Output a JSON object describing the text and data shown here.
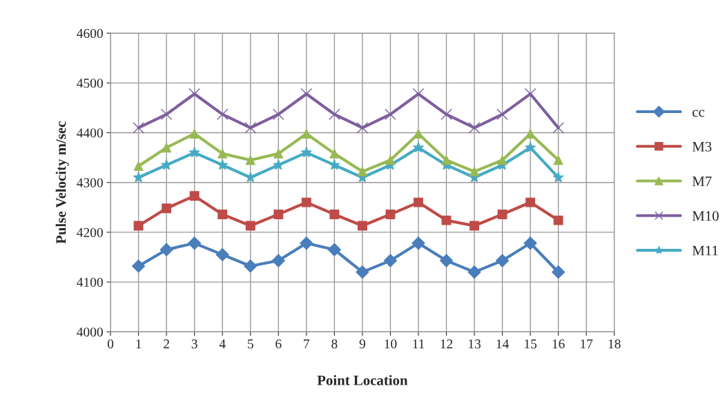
{
  "chart_data": {
    "type": "line",
    "xlabel": "Point Location",
    "ylabel": "Pulse Velocity m/sec",
    "x": [
      1,
      2,
      3,
      4,
      5,
      6,
      7,
      8,
      9,
      10,
      11,
      12,
      13,
      14,
      15,
      16
    ],
    "xlim": [
      0,
      18
    ],
    "xticks": [
      0,
      1,
      2,
      3,
      4,
      5,
      6,
      7,
      8,
      9,
      10,
      11,
      12,
      13,
      14,
      15,
      16,
      17,
      18
    ],
    "ylim": [
      4000,
      4600
    ],
    "yticks": [
      4000,
      4100,
      4200,
      4300,
      4400,
      4500,
      4600
    ],
    "grid": true,
    "legend": "right",
    "line_style": "solid",
    "series": [
      {
        "name": "cc",
        "color": "#4a7ebb",
        "marker": "diamond",
        "values": [
          4132,
          4165,
          4178,
          4155,
          4132,
          4143,
          4178,
          4165,
          4120,
          4143,
          4178,
          4143,
          4120,
          4143,
          4178,
          4120
        ]
      },
      {
        "name": "M3",
        "color": "#be4b48",
        "marker": "square",
        "values": [
          4213,
          4248,
          4273,
          4236,
          4213,
          4236,
          4260,
          4236,
          4213,
          4236,
          4260,
          4224,
          4213,
          4236,
          4260,
          4224
        ]
      },
      {
        "name": "M7",
        "color": "#98b954",
        "marker": "triangle",
        "values": [
          4333,
          4370,
          4398,
          4358,
          4345,
          4358,
          4398,
          4358,
          4322,
          4345,
          4398,
          4345,
          4322,
          4345,
          4398,
          4345
        ]
      },
      {
        "name": "M10",
        "color": "#7d60a0",
        "marker": "cross",
        "values": [
          4410,
          4437,
          4478,
          4437,
          4410,
          4437,
          4478,
          4437,
          4410,
          4437,
          4478,
          4437,
          4410,
          4437,
          4478,
          4410
        ]
      },
      {
        "name": "M11",
        "color": "#46aac5",
        "marker": "star",
        "values": [
          4310,
          4335,
          4360,
          4335,
          4310,
          4335,
          4360,
          4335,
          4310,
          4335,
          4370,
          4335,
          4310,
          4335,
          4370,
          4310
        ]
      }
    ]
  }
}
